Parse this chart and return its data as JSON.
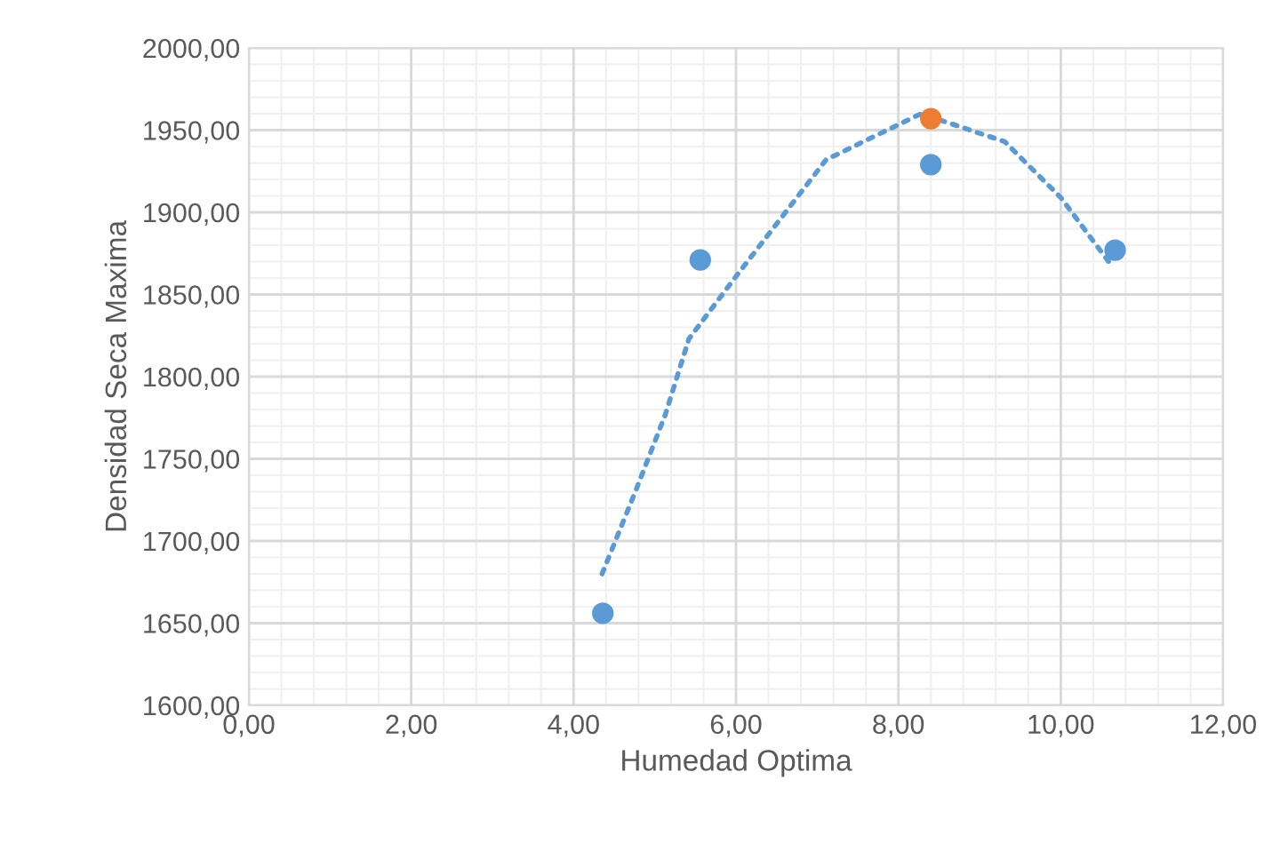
{
  "chart_data": {
    "type": "scatter",
    "xlabel": "Humedad Optima",
    "ylabel": "Densidad Seca Maxima",
    "xlim": [
      0,
      12
    ],
    "ylim": [
      1600,
      2000
    ],
    "xticks": [
      {
        "value": 0,
        "label": "0,00"
      },
      {
        "value": 2,
        "label": "2,00"
      },
      {
        "value": 4,
        "label": "4,00"
      },
      {
        "value": 6,
        "label": "6,00"
      },
      {
        "value": 8,
        "label": "8,00"
      },
      {
        "value": 10,
        "label": "10,00"
      },
      {
        "value": 12,
        "label": "12,00"
      }
    ],
    "yticks": [
      {
        "value": 1600,
        "label": "1600,00"
      },
      {
        "value": 1650,
        "label": "1650,00"
      },
      {
        "value": 1700,
        "label": "1700,00"
      },
      {
        "value": 1750,
        "label": "1750,00"
      },
      {
        "value": 1800,
        "label": "1800,00"
      },
      {
        "value": 1850,
        "label": "1850,00"
      },
      {
        "value": 1900,
        "label": "1900,00"
      },
      {
        "value": 1950,
        "label": "1950,00"
      },
      {
        "value": 2000,
        "label": "2000,00"
      }
    ],
    "grid": true,
    "marker": "circle",
    "series": [
      {
        "type": "line",
        "line_style": "dotted",
        "marker": "none",
        "color": "#5b9bd5",
        "x": [
          4.35,
          4.76,
          5.13,
          5.42,
          6.0,
          7.11,
          8.28,
          9.31,
          10.0,
          10.59
        ],
        "values": [
          1680,
          1730,
          1777,
          1823,
          1861,
          1932,
          1960,
          1943,
          1909,
          1870
        ]
      },
      {
        "color": "#5b9bd5",
        "x": [
          4.36,
          5.56,
          8.4,
          10.67
        ],
        "values": [
          1656,
          1871,
          1929,
          1877
        ]
      },
      {
        "color": "#ed7d31",
        "x": [
          8.4
        ],
        "values": [
          1957
        ]
      }
    ]
  }
}
